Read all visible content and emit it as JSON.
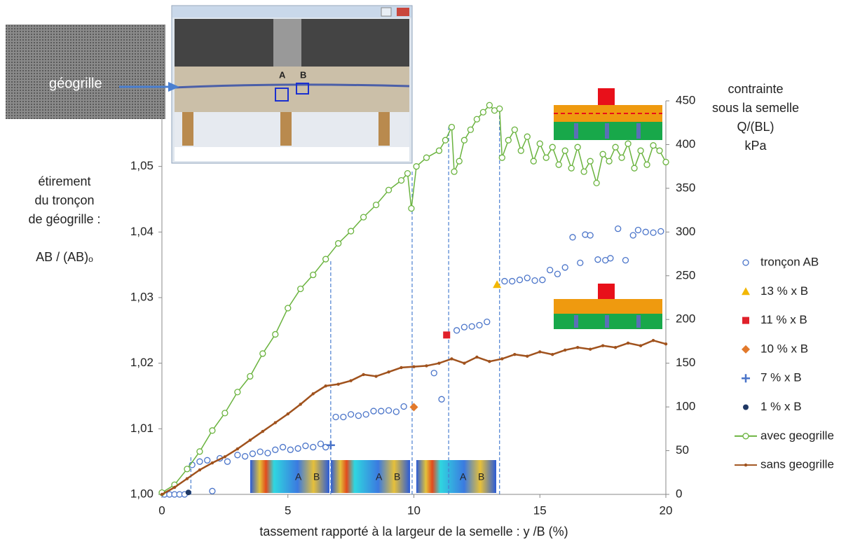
{
  "chart_data": {
    "type": "line",
    "xlabel": "tassement rapporté à la largeur de la semelle : y /B (%)",
    "ylabel_lines": [
      "étirement",
      "du tronçon",
      "de géogrille :",
      "AB / (AB)ₒ"
    ],
    "y2label_lines": [
      "contrainte",
      "sous la semelle",
      "Q/(BL)",
      "kPa"
    ],
    "annotations": {
      "geogrille": "géogrille",
      "point_a": "A",
      "point_b": "B"
    },
    "xlim": [
      0,
      20
    ],
    "xticks": [
      0,
      5,
      10,
      15,
      20
    ],
    "ylim": [
      1.0,
      1.06
    ],
    "yticks": [
      {
        "value": 1.0,
        "label": "1,00"
      },
      {
        "value": 1.01,
        "label": "1,01"
      },
      {
        "value": 1.02,
        "label": "1,02"
      },
      {
        "value": 1.03,
        "label": "1,03"
      },
      {
        "value": 1.04,
        "label": "1,04"
      },
      {
        "value": 1.05,
        "label": "1,05"
      }
    ],
    "y2lim": [
      0,
      450
    ],
    "y2ticks": [
      0,
      50,
      100,
      150,
      200,
      250,
      300,
      350,
      400,
      450
    ],
    "grid": false,
    "reference_lines": {
      "x": [
        1.15,
        6.7,
        9.93,
        11.38,
        13.4
      ],
      "y2": [
        45,
        268,
        370,
        420,
        440
      ],
      "color": "#4a7fd0"
    },
    "series": [
      {
        "name": "tronçon AB",
        "axis": "y",
        "marker": "circle-open",
        "line": false,
        "color": "#4a74c9",
        "x": [
          0.1,
          0.3,
          0.5,
          0.7,
          0.9,
          1.2,
          1.5,
          1.8,
          2,
          2.3,
          2.6,
          3,
          3.3,
          3.6,
          3.9,
          4.2,
          4.5,
          4.8,
          5.1,
          5.4,
          5.7,
          6,
          6.3,
          6.5,
          6.9,
          7.2,
          7.5,
          7.8,
          8.1,
          8.4,
          8.7,
          9,
          9.3,
          9.6,
          10.8,
          11.1,
          11.7,
          12,
          12.3,
          12.6,
          12.9,
          13.6,
          13.9,
          14.2,
          14.5,
          14.8,
          15.1,
          15.4,
          15.7,
          16,
          16.3,
          16.6,
          16.8,
          17,
          17.3,
          17.6,
          17.8,
          18.1,
          18.4,
          18.7,
          18.9,
          19.2,
          19.5,
          19.8
        ],
        "values": [
          1.0,
          1.0,
          1.0,
          1.0,
          1.0,
          1.0045,
          1.005,
          1.0052,
          1.0005,
          1.0055,
          1.005,
          1.006,
          1.0058,
          1.0062,
          1.0065,
          1.0063,
          1.0068,
          1.0072,
          1.0068,
          1.007,
          1.0074,
          1.0072,
          1.0077,
          1.0072,
          1.0118,
          1.0118,
          1.0122,
          1.012,
          1.0122,
          1.0127,
          1.0127,
          1.0128,
          1.0126,
          1.0134,
          1.0185,
          1.0145,
          1.025,
          1.0255,
          1.0256,
          1.0258,
          1.0263,
          1.0325,
          1.0325,
          1.0327,
          1.033,
          1.0326,
          1.0327,
          1.0342,
          1.0336,
          1.0346,
          1.0392,
          1.0353,
          1.0396,
          1.0395,
          1.0358,
          1.0357,
          1.036,
          1.0405,
          1.0357,
          1.0395,
          1.0403,
          1.04,
          1.0399,
          1.0401
        ]
      },
      {
        "name": "13  % x B",
        "axis": "y",
        "marker": "triangle",
        "line": false,
        "color": "#f2b705",
        "x": [
          13.3
        ],
        "values": [
          1.032
        ]
      },
      {
        "name": "11  % x B",
        "axis": "y",
        "marker": "square",
        "line": false,
        "color": "#e0202a",
        "x": [
          11.3
        ],
        "values": [
          1.0243
        ]
      },
      {
        "name": "10  % x B",
        "axis": "y",
        "marker": "diamond",
        "line": false,
        "color": "#e2792b",
        "x": [
          10.0
        ],
        "values": [
          1.0133
        ]
      },
      {
        "name": "7  % x B",
        "axis": "y",
        "marker": "plus",
        "line": false,
        "color": "#4a74c9",
        "x": [
          6.7
        ],
        "values": [
          1.0075
        ]
      },
      {
        "name": "1  % x B",
        "axis": "y",
        "marker": "dot",
        "line": false,
        "color": "#1f3864",
        "x": [
          1.05
        ],
        "values": [
          1.0003
        ]
      },
      {
        "name": "avec geogrille",
        "axis": "y2",
        "marker": "circle-open",
        "line": true,
        "color": "#6ab33e",
        "x": [
          0,
          0.5,
          1,
          1.5,
          2,
          2.5,
          3,
          3.5,
          4,
          4.5,
          5,
          5.5,
          6,
          6.5,
          7,
          7.5,
          8,
          8.5,
          9,
          9.5,
          9.75,
          9.9,
          10.1,
          10.5,
          11,
          11.25,
          11.5,
          11.6,
          11.8,
          12,
          12.25,
          12.5,
          12.75,
          13,
          13.2,
          13.4,
          13.5,
          13.75,
          14,
          14.25,
          14.5,
          14.75,
          15,
          15.25,
          15.5,
          15.75,
          16,
          16.25,
          16.5,
          16.75,
          17,
          17.25,
          17.5,
          17.75,
          18,
          18.25,
          18.5,
          18.75,
          19,
          19.25,
          19.5,
          19.75,
          20
        ],
        "values": [
          2,
          11,
          29,
          49,
          73,
          93,
          117,
          135,
          161,
          183,
          213,
          235,
          251,
          269,
          287,
          301,
          317,
          331,
          348,
          359,
          367,
          327,
          375,
          385,
          393,
          405,
          420,
          369,
          381,
          405,
          417,
          429,
          437,
          445,
          439,
          441,
          385,
          405,
          417,
          393,
          409,
          381,
          401,
          385,
          397,
          377,
          393,
          373,
          397,
          369,
          381,
          356,
          389,
          381,
          397,
          385,
          401,
          373,
          393,
          377,
          399,
          393,
          380
        ]
      },
      {
        "name": "sans geogrille",
        "axis": "y2",
        "marker": "dot-small",
        "line": true,
        "color": "#a0521d",
        "x": [
          0,
          0.5,
          1,
          1.5,
          2,
          2.5,
          3,
          3.5,
          4,
          4.5,
          5,
          5.5,
          6,
          6.5,
          7,
          7.5,
          8,
          8.5,
          9,
          9.5,
          10,
          10.5,
          11,
          11.5,
          12,
          12.5,
          13,
          13.5,
          14,
          14.5,
          15,
          15.5,
          16,
          16.5,
          17,
          17.5,
          18,
          18.5,
          19,
          19.5,
          20
        ],
        "values": [
          0,
          8,
          18,
          28,
          36,
          43,
          52,
          62,
          72,
          82,
          92,
          103,
          115,
          124,
          126,
          130,
          137,
          135,
          140,
          145,
          146,
          147,
          150,
          155,
          150,
          157,
          152,
          155,
          160,
          158,
          163,
          160,
          165,
          168,
          166,
          170,
          168,
          173,
          170,
          176,
          172
        ]
      }
    ]
  }
}
